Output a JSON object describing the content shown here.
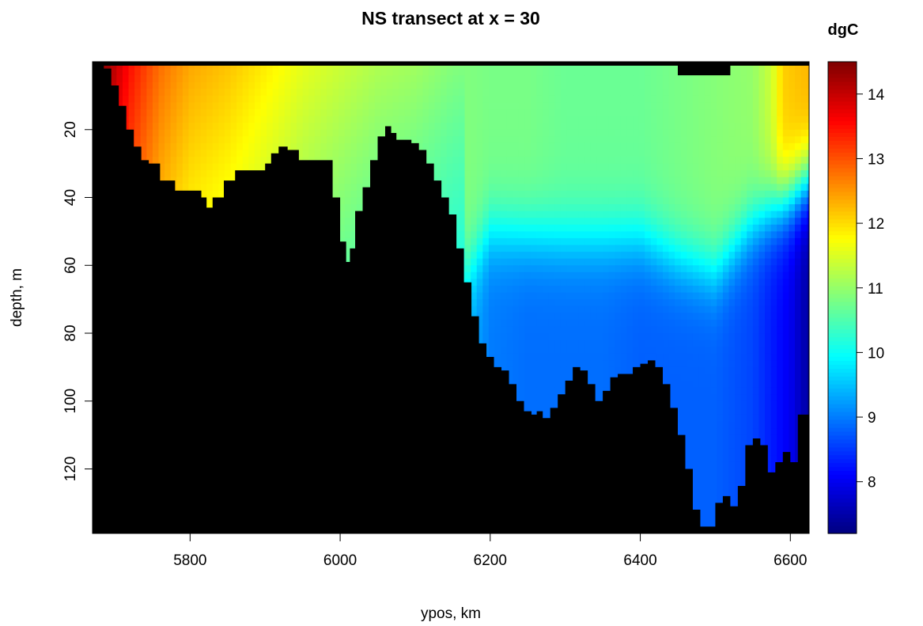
{
  "chart_data": {
    "type": "heatmap",
    "title": "NS transect at x = 30",
    "xlabel": "ypos, km",
    "ylabel": "depth, m",
    "colorbar_label": "dgC",
    "xlim": [
      5670,
      6625
    ],
    "ylim": [
      0,
      139
    ],
    "y_reversed": true,
    "x_ticks": [
      5800,
      6000,
      6200,
      6400,
      6600
    ],
    "y_ticks": [
      20,
      40,
      60,
      80,
      100,
      120
    ],
    "colorbar": {
      "range": [
        7.2,
        14.5
      ],
      "ticks": [
        8,
        9,
        10,
        11,
        12,
        13,
        14
      ],
      "palette": [
        "#00007F",
        "#0000FF",
        "#007FFF",
        "#00FFFF",
        "#7FFF7F",
        "#FFFF00",
        "#FF7F00",
        "#FF0000",
        "#7F0000"
      ]
    },
    "masked_color": "#000000",
    "bottom_depth_profile": {
      "x": [
        5670,
        5685,
        5695,
        5705,
        5715,
        5725,
        5735,
        5745,
        5760,
        5780,
        5800,
        5815,
        5822,
        5830,
        5845,
        5860,
        5880,
        5900,
        5908,
        5918,
        5930,
        5945,
        5960,
        5980,
        5990,
        6000,
        6008,
        6013,
        6020,
        6030,
        6040,
        6050,
        6060,
        6068,
        6075,
        6085,
        6095,
        6105,
        6115,
        6125,
        6135,
        6145,
        6155,
        6165,
        6175,
        6185,
        6195,
        6205,
        6215,
        6225,
        6235,
        6245,
        6255,
        6262,
        6270,
        6280,
        6290,
        6300,
        6310,
        6320,
        6330,
        6340,
        6350,
        6360,
        6370,
        6380,
        6390,
        6400,
        6410,
        6420,
        6430,
        6440,
        6450,
        6460,
        6470,
        6480,
        6490,
        6500,
        6510,
        6520,
        6530,
        6540,
        6550,
        6560,
        6570,
        6580,
        6590,
        6600,
        6610,
        6625
      ],
      "depth": [
        0,
        2,
        7,
        13,
        20,
        25,
        29,
        30,
        35,
        38,
        38,
        40,
        43,
        40,
        35,
        32,
        32,
        30,
        27,
        25,
        26,
        29,
        29,
        29,
        40,
        53,
        59,
        55,
        44,
        37,
        29,
        22,
        19,
        21,
        23,
        23,
        24,
        26,
        30,
        35,
        40,
        45,
        55,
        65,
        75,
        83,
        87,
        90,
        91,
        95,
        100,
        103,
        104,
        103,
        105,
        102,
        98,
        94,
        90,
        91,
        95,
        100,
        97,
        93,
        92,
        92,
        90,
        89,
        88,
        90,
        95,
        102,
        110,
        120,
        132,
        137,
        137,
        130,
        128,
        131,
        125,
        113,
        111,
        113,
        121,
        118,
        115,
        118,
        104,
        106
      ]
    },
    "surface_masked_segment": {
      "x": [
        6450,
        6520
      ],
      "depth": [
        0,
        4
      ]
    },
    "temperature_field": {
      "surface_x": [
        5670,
        5690,
        5720,
        5760,
        5800,
        5850,
        5900,
        5950,
        6000,
        6050,
        6100,
        6150,
        6200,
        6250,
        6300,
        6350,
        6400,
        6450,
        6500,
        6550,
        6575,
        6590,
        6625
      ],
      "surface_temp": [
        14.5,
        14.3,
        13.5,
        12.8,
        12.4,
        12.2,
        11.9,
        11.6,
        11.4,
        11.2,
        11.1,
        10.9,
        10.8,
        10.8,
        10.7,
        10.7,
        10.7,
        10.8,
        10.9,
        11.0,
        11.4,
        12.1,
        12.3
      ],
      "deep_x": [
        6170,
        6200,
        6250,
        6300,
        6350,
        6400,
        6450,
        6500,
        6550,
        6600,
        6625
      ],
      "deep_temp": [
        9.4,
        9.0,
        8.9,
        8.9,
        8.9,
        8.8,
        8.8,
        8.8,
        8.6,
        8.0,
        7.4
      ],
      "thermocline_depth_m": [
        [
          6170,
          62
        ],
        [
          6200,
          50
        ],
        [
          6300,
          52
        ],
        [
          6400,
          52
        ],
        [
          6450,
          58
        ],
        [
          6500,
          62
        ],
        [
          6550,
          48
        ],
        [
          6600,
          40
        ],
        [
          6625,
          35
        ]
      ]
    }
  }
}
